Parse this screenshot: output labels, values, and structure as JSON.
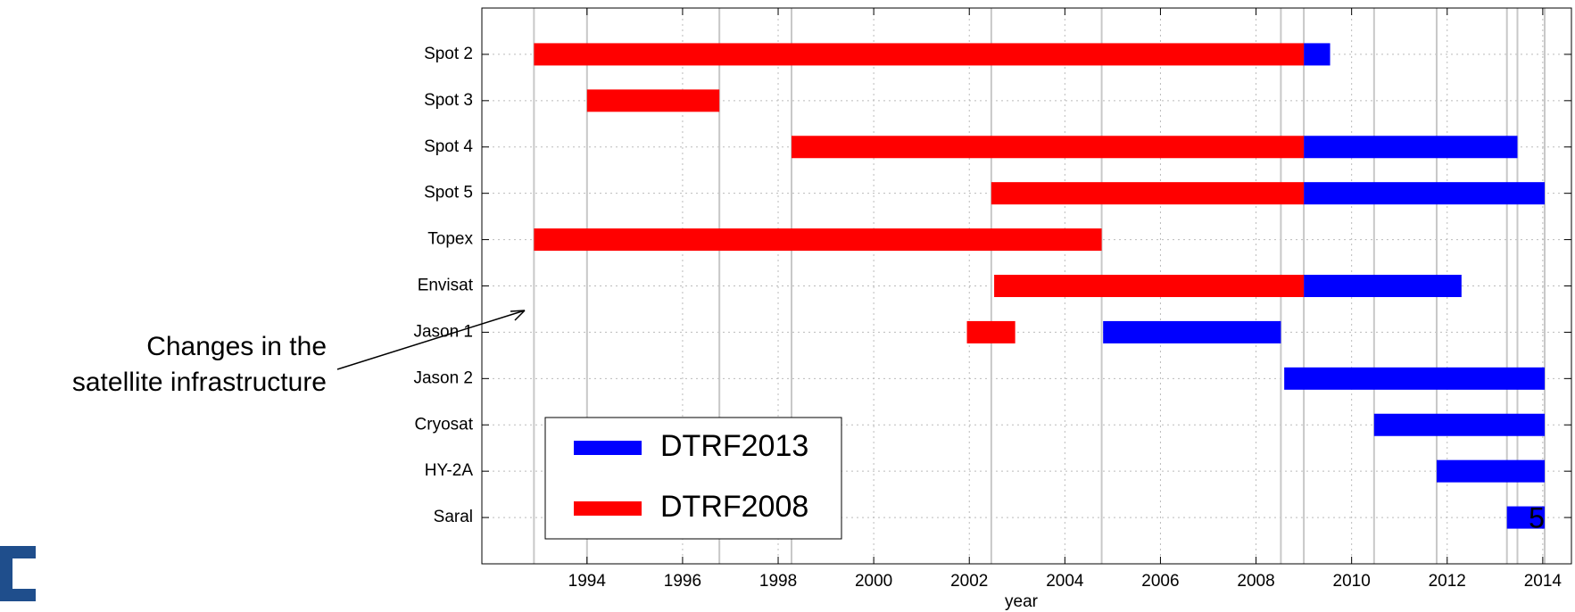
{
  "chart_data": {
    "type": "timeline",
    "x_label": "year",
    "annotation": [
      "Changes in the",
      "satellite infrastructure"
    ],
    "page_number": "5",
    "categories": [
      "Spot 2",
      "Spot 3",
      "Spot 4",
      "Spot 5",
      "Topex",
      "Envisat",
      "Jason 1",
      "Jason 2",
      "Cryosat",
      "HY-2A",
      "Saral"
    ],
    "series": [
      {
        "name": "DTRF2013",
        "color": "#0000ff",
        "values": [
          [
            2009.0,
            2009.55
          ],
          null,
          [
            2009.0,
            2013.47
          ],
          [
            2009.0,
            2014.04
          ],
          null,
          [
            2009.0,
            2012.3
          ],
          [
            2004.8,
            2008.52
          ],
          [
            2008.59,
            2014.04
          ],
          [
            2010.47,
            2014.04
          ],
          [
            2011.78,
            2014.04
          ],
          [
            2013.25,
            2014.04
          ]
        ]
      },
      {
        "name": "DTRF2008",
        "color": "#ff0000",
        "values": [
          [
            1992.89,
            2009.0
          ],
          [
            1994.0,
            1996.77
          ],
          [
            1998.28,
            2009.0
          ],
          [
            2002.46,
            2009.0
          ],
          [
            1992.89,
            2004.77
          ],
          [
            2002.52,
            2009.0
          ],
          [
            2001.95,
            2002.96
          ],
          null,
          null,
          null,
          null
        ]
      }
    ],
    "event_lines": [
      1992.89,
      1994.0,
      1996.77,
      1998.28,
      2002.46,
      2004.77,
      2008.52,
      2009.0,
      2010.47,
      2011.78,
      2013.25,
      2013.47,
      2014.04
    ],
    "xlim": [
      1991.8,
      2014.6
    ],
    "xticks": [
      1994,
      1996,
      1998,
      2000,
      2002,
      2004,
      2006,
      2008,
      2010,
      2012,
      2014
    ],
    "grid": true,
    "legend": "lower left"
  }
}
